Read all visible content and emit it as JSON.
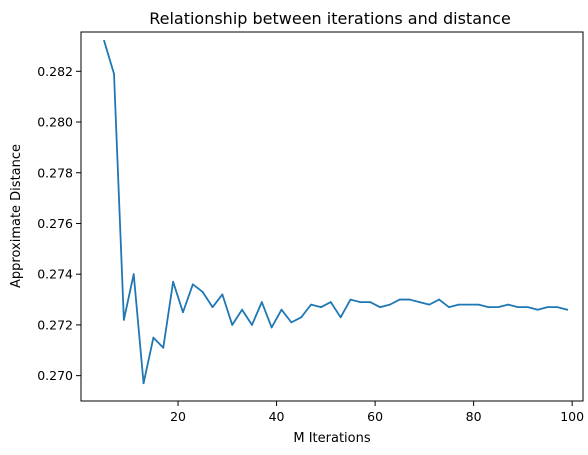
{
  "chart_data": {
    "type": "line",
    "title": "Relationship between iterations and distance",
    "xlabel": "M Iterations",
    "ylabel": "Approximate Distance",
    "xlim": [
      0.3,
      102.2
    ],
    "ylim": [
      0.269,
      0.28355
    ],
    "xticks": [
      20,
      40,
      60,
      80,
      100
    ],
    "yticks": [
      0.27,
      0.272,
      0.274,
      0.276,
      0.278,
      0.28,
      0.282
    ],
    "grid": false,
    "series": [
      {
        "color": "#1f77b4",
        "x": [
          5,
          7,
          9,
          11,
          13,
          15,
          17,
          19,
          21,
          23,
          25,
          27,
          29,
          31,
          33,
          35,
          37,
          39,
          41,
          43,
          45,
          47,
          49,
          51,
          53,
          55,
          57,
          59,
          61,
          63,
          65,
          67,
          69,
          71,
          73,
          75,
          77,
          79,
          81,
          83,
          85,
          87,
          89,
          91,
          93,
          95,
          97,
          99
        ],
        "y": [
          0.2832,
          0.2819,
          0.2722,
          0.274,
          0.2697,
          0.2715,
          0.2711,
          0.2737,
          0.2725,
          0.2736,
          0.2733,
          0.2727,
          0.2732,
          0.272,
          0.2726,
          0.272,
          0.2729,
          0.2719,
          0.2726,
          0.2721,
          0.2723,
          0.2728,
          0.2727,
          0.2729,
          0.2723,
          0.273,
          0.2729,
          0.2729,
          0.2727,
          0.2728,
          0.273,
          0.273,
          0.2729,
          0.2728,
          0.273,
          0.2727,
          0.2728,
          0.2728,
          0.2728,
          0.2727,
          0.2727,
          0.2728,
          0.2727,
          0.2727,
          0.2726,
          0.2727,
          0.2727,
          0.2726
        ]
      }
    ]
  }
}
